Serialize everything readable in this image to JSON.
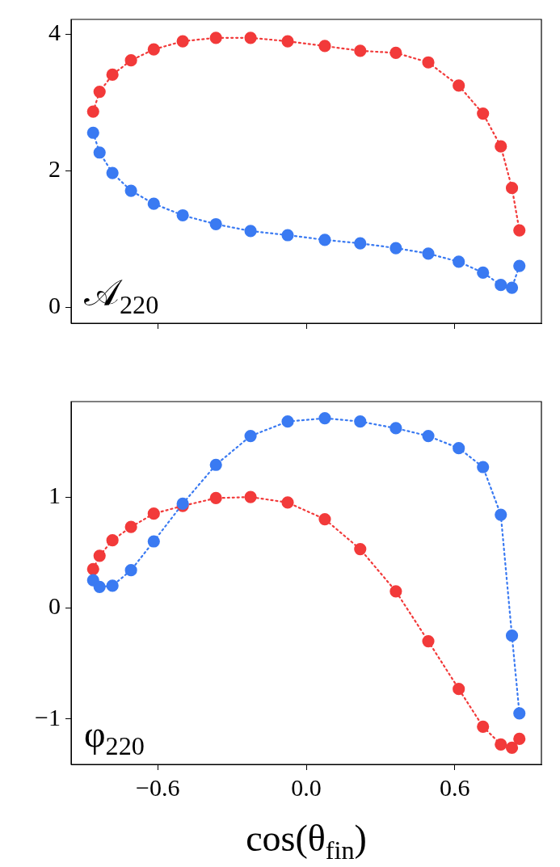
{
  "chart_data": [
    {
      "type": "line",
      "marker": "circle",
      "line_style": "dotted",
      "grid": false,
      "tick_labels": "y",
      "xlim": [
        -0.95,
        0.95
      ],
      "xticks": [
        {
          "value": -0.6,
          "label": null
        },
        {
          "value": 0,
          "label": null
        },
        {
          "value": 0.6,
          "label": null
        }
      ],
      "ylim": [
        -0.23,
        4.22
      ],
      "yticks": [
        0,
        2,
        4
      ],
      "annotations": [
        "𝒜$_{220}$"
      ],
      "series": [
        {
          "color": "#f23a3a",
          "x": [
            -0.861,
            -0.835,
            -0.783,
            -0.708,
            -0.616,
            -0.499,
            -0.365,
            -0.225,
            -0.075,
            0.075,
            0.218,
            0.362,
            0.493,
            0.616,
            0.714,
            0.786,
            0.831,
            0.861
          ],
          "values": [
            2.87,
            3.16,
            3.41,
            3.62,
            3.78,
            3.9,
            3.95,
            3.95,
            3.9,
            3.83,
            3.76,
            3.73,
            3.59,
            3.25,
            2.84,
            2.36,
            1.75,
            1.13
          ]
        },
        {
          "color": "#3a7af2",
          "x": [
            -0.861,
            -0.835,
            -0.783,
            -0.708,
            -0.616,
            -0.499,
            -0.365,
            -0.225,
            -0.075,
            0.075,
            0.218,
            0.362,
            0.493,
            0.616,
            0.714,
            0.786,
            0.831,
            0.861
          ],
          "values": [
            2.56,
            2.27,
            1.97,
            1.71,
            1.52,
            1.35,
            1.22,
            1.12,
            1.06,
            0.99,
            0.94,
            0.87,
            0.79,
            0.67,
            0.51,
            0.33,
            0.29,
            0.61
          ]
        }
      ]
    },
    {
      "type": "line",
      "marker": "circle",
      "line_style": "dotted",
      "grid": false,
      "xlim": [
        -0.95,
        0.95
      ],
      "xticks": [
        {
          "value": -0.6,
          "label": "−0.6"
        },
        {
          "value": 0,
          "label": "0.0"
        },
        {
          "value": 0.6,
          "label": "0.6"
        }
      ],
      "ylim": [
        -1.41,
        1.86
      ],
      "yticks": [
        {
          "value": -1,
          "label": "−1"
        },
        0,
        1
      ],
      "xlabel": "cos(θ$_{fin}$)",
      "annotations": [
        "φ$_{220}$"
      ],
      "series": [
        {
          "color": "#f23a3a",
          "x": [
            -0.861,
            -0.835,
            -0.783,
            -0.708,
            -0.616,
            -0.499,
            -0.365,
            -0.225,
            -0.075,
            0.075,
            0.218,
            0.362,
            0.493,
            0.616,
            0.714,
            0.786,
            0.831,
            0.861
          ],
          "values": [
            0.35,
            0.47,
            0.61,
            0.73,
            0.85,
            0.92,
            0.99,
            1.0,
            0.95,
            0.8,
            0.53,
            0.15,
            -0.3,
            -0.73,
            -1.07,
            -1.23,
            -1.26,
            -1.18
          ]
        },
        {
          "color": "#3a7af2",
          "x": [
            -0.861,
            -0.835,
            -0.783,
            -0.708,
            -0.616,
            -0.499,
            -0.365,
            -0.225,
            -0.075,
            0.075,
            0.218,
            0.362,
            0.493,
            0.616,
            0.714,
            0.786,
            0.831,
            0.861
          ],
          "values": [
            0.25,
            0.19,
            0.2,
            0.34,
            0.6,
            0.94,
            1.29,
            1.55,
            1.68,
            1.71,
            1.68,
            1.62,
            1.55,
            1.44,
            1.27,
            0.84,
            -0.25,
            -0.95
          ]
        }
      ]
    }
  ]
}
